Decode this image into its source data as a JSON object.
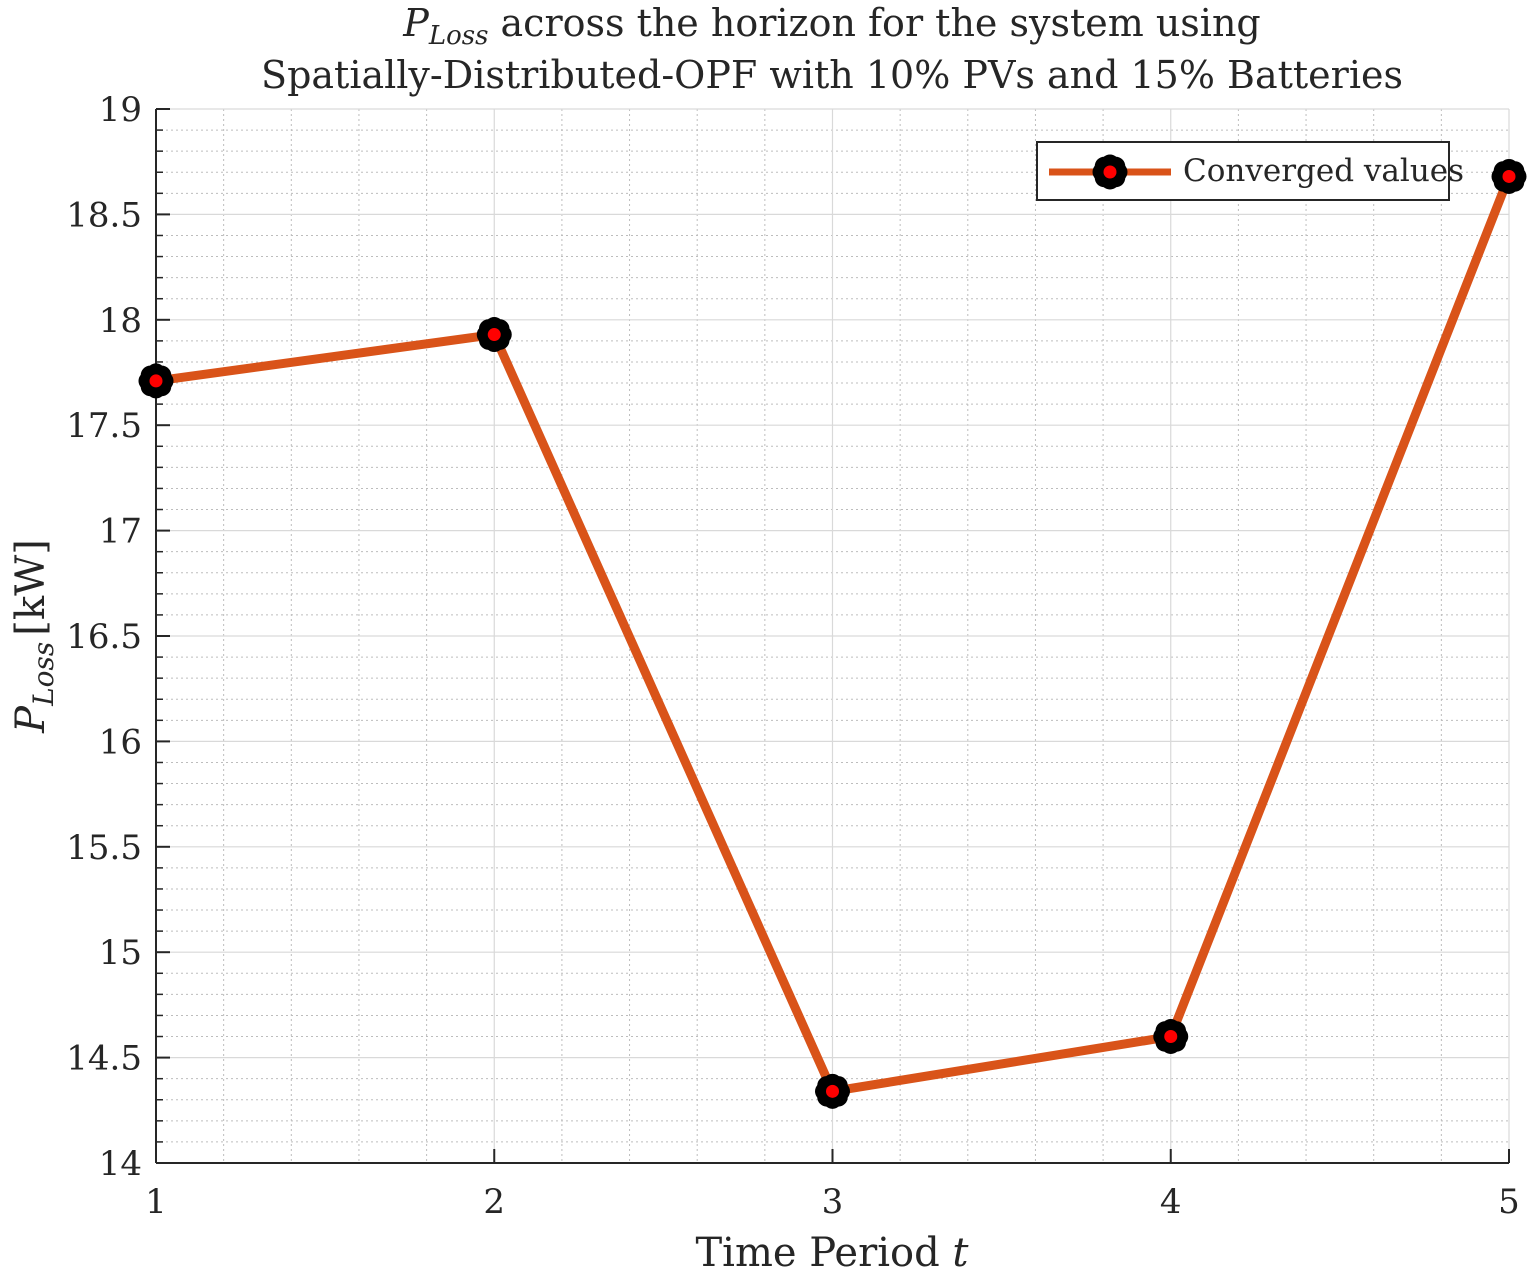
{
  "chart_data": {
    "type": "line",
    "title": {
      "line1": {
        "symbol": "P",
        "subscript": "Loss",
        "text": " across the horizon for the system using"
      },
      "line2": "Spatially-Distributed-OPF with 10% PVs and 15% Batteries"
    },
    "xlabel": {
      "text": "Time Period ",
      "symbol": "t"
    },
    "ylabel": {
      "symbol": "P",
      "subscript": "Loss",
      "unit": "[kW]"
    },
    "x": [
      1,
      2,
      3,
      4,
      5
    ],
    "xlim": [
      1,
      5
    ],
    "ylim": [
      14,
      19
    ],
    "xticks": [
      "1",
      "2",
      "3",
      "4",
      "5"
    ],
    "yticks": [
      "14",
      "14.5",
      "15",
      "15.5",
      "16",
      "16.5",
      "17",
      "17.5",
      "18",
      "18.5",
      "19"
    ],
    "grid": true,
    "minor_grid": true,
    "legend_position": "top-right",
    "series": [
      {
        "name": "Converged values",
        "values": [
          17.71,
          17.93,
          14.34,
          14.6,
          18.68
        ],
        "color": "#D95319",
        "marker_edge_color": "#000000",
        "marker_face_color": "#FF0000"
      }
    ]
  }
}
